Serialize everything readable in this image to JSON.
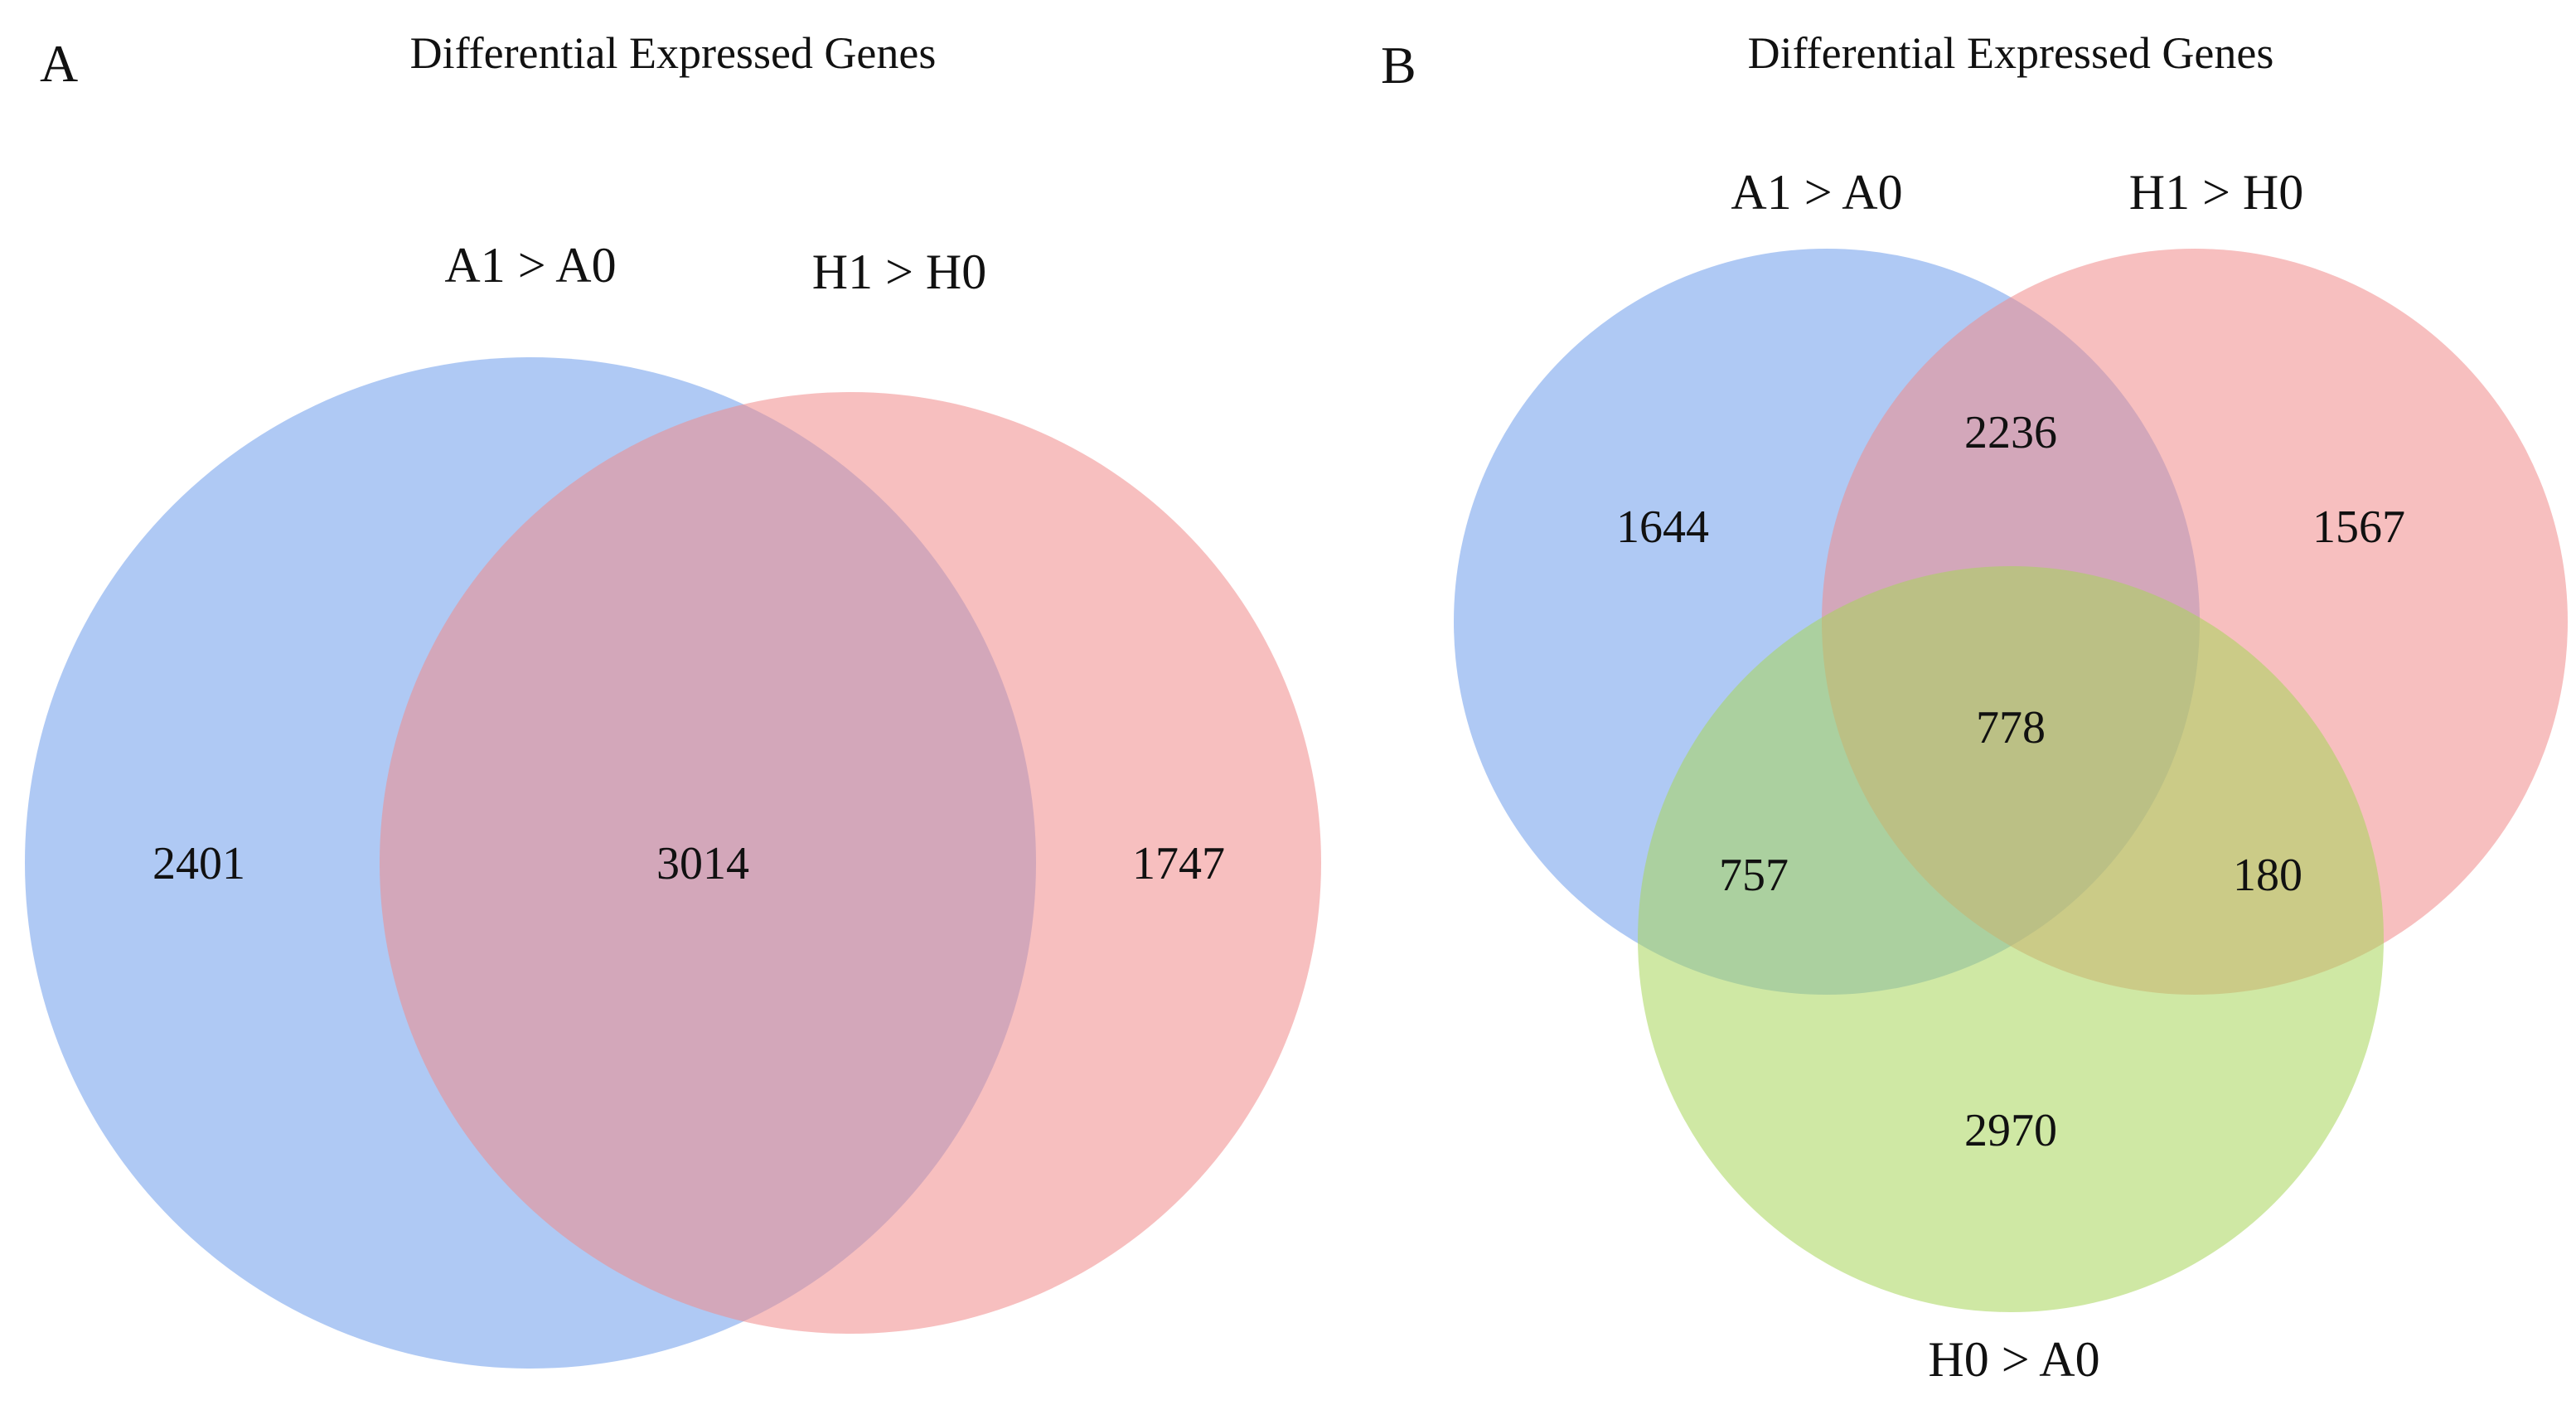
{
  "panel_a": {
    "letter": "A",
    "title": "Differential Expressed Genes",
    "sets": [
      {
        "label": "A1 > A0",
        "color": "#6d9ceb"
      },
      {
        "label": "H1 > H0",
        "color": "#f08a8a"
      }
    ],
    "regions": {
      "a1_only": "2401",
      "overlap": "3014",
      "h1_only": "1747"
    }
  },
  "panel_b": {
    "letter": "B",
    "title": "Differential Expressed Genes",
    "sets": [
      {
        "label": "A1 > A0",
        "color": "#6d9ceb"
      },
      {
        "label": "H1 > H0",
        "color": "#f08a8a"
      },
      {
        "label": "H0 > A0",
        "color": "#a8d65a"
      }
    ],
    "regions": {
      "a1_only": "1644",
      "a1_h1": "2236",
      "h1_only": "1567",
      "all_three": "778",
      "a1_h0": "757",
      "h1_h0": "180",
      "h0_only": "2970"
    }
  }
}
